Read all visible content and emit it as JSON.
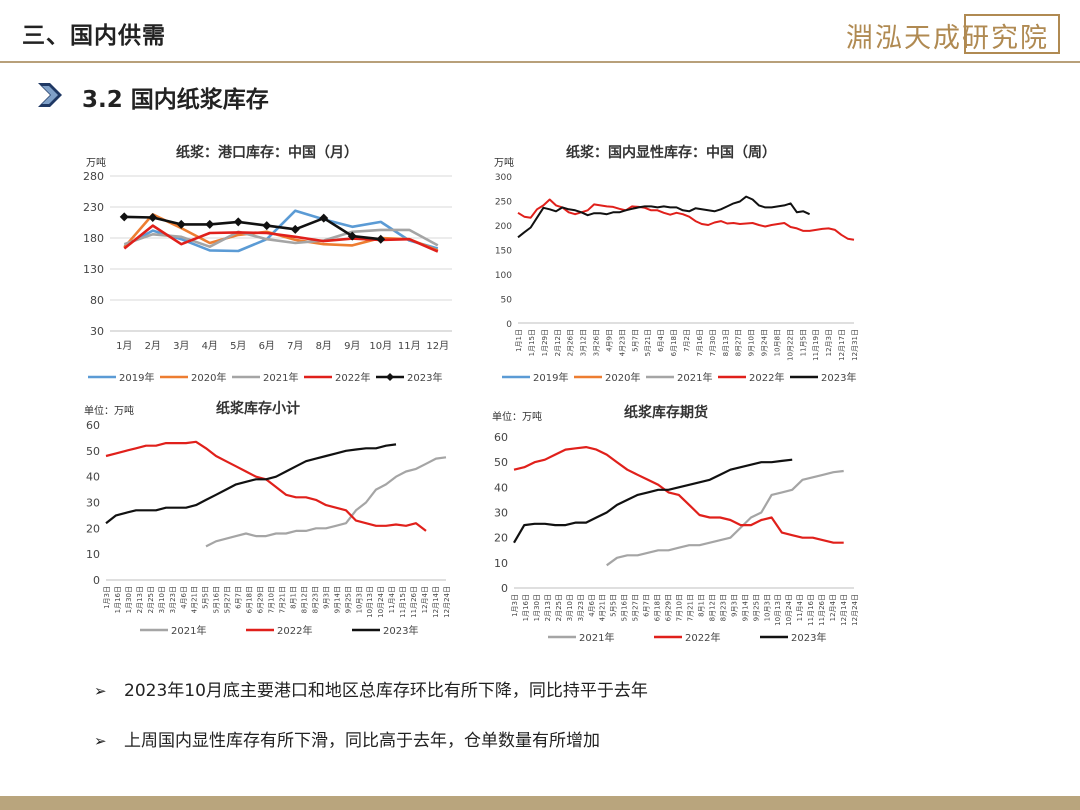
{
  "header": {
    "title": "三、国内供需",
    "logo_text": "淵泓天成研究院"
  },
  "section": {
    "title": "3.2 国内纸浆库存"
  },
  "colors": {
    "2019": "#5b9bd5",
    "2020": "#ed7d31",
    "2021": "#a5a5a5",
    "2022": "#e0201b",
    "2023": "#111111",
    "2021b": "#5b9bd5",
    "accent": "#b8a07a"
  },
  "charts": {
    "c1": {
      "title": "纸浆：港口库存：中国（月）",
      "unit": "万吨",
      "legend_marker_2023": "diamond"
    },
    "c2": {
      "title": "纸浆：国内显性库存：中国（周）",
      "unit": "万吨"
    },
    "c3": {
      "title": "纸浆库存小计",
      "unit": "单位：万吨"
    },
    "c4": {
      "title": "纸浆库存期货",
      "unit": "单位：万吨"
    }
  },
  "chart_data": [
    {
      "type": "line",
      "title": "纸浆：港口库存：中国（月）",
      "ylabel": "万吨",
      "ylim": [
        30,
        280
      ],
      "yticks": [
        30,
        80,
        130,
        180,
        230,
        280
      ],
      "categories": [
        "1月",
        "2月",
        "3月",
        "4月",
        "5月",
        "6月",
        "7月",
        "8月",
        "9月",
        "10月",
        "11月",
        "12月"
      ],
      "legend_position": "bottom",
      "series": [
        {
          "name": "2019年",
          "values": [
            167,
            192,
            178,
            160,
            159,
            178,
            224,
            210,
            198,
            206,
            176,
            163
          ]
        },
        {
          "name": "2020年",
          "values": [
            165,
            218,
            196,
            172,
            185,
            190,
            177,
            170,
            168,
            180,
            178,
            160
          ]
        },
        {
          "name": "2021年",
          "values": [
            170,
            186,
            182,
            166,
            190,
            178,
            172,
            176,
            190,
            193,
            193,
            168
          ]
        },
        {
          "name": "2022年",
          "values": [
            163,
            200,
            170,
            188,
            189,
            188,
            182,
            175,
            179,
            177,
            178,
            158
          ]
        },
        {
          "name": "2023年",
          "values": [
            214,
            213,
            202,
            202,
            206,
            200,
            194,
            212,
            183,
            178,
            null,
            null
          ]
        }
      ]
    },
    {
      "type": "line",
      "title": "纸浆：国内显性库存：中国（周）",
      "ylabel": "万吨",
      "ylim": [
        0,
        300
      ],
      "yticks": [
        0,
        50,
        100,
        150,
        200,
        250,
        300
      ],
      "x_ticks": [
        "1月1日",
        "1月15日",
        "1月29日",
        "2月12日",
        "2月26日",
        "3月12日",
        "3月26日",
        "4月9日",
        "4月23日",
        "5月7日",
        "5月21日",
        "6月4日",
        "6月18日",
        "7月2日",
        "7月16日",
        "7月30日",
        "8月13日",
        "8月27日",
        "9月10日",
        "9月24日",
        "10月8日",
        "10月22日",
        "11月5日",
        "11月19日",
        "12月3日",
        "12月17日",
        "12月31日"
      ],
      "legend_position": "bottom",
      "series": [
        {
          "name": "2019年",
          "values": []
        },
        {
          "name": "2020年",
          "values": []
        },
        {
          "name": "2021年",
          "values": []
        },
        {
          "name": "2022年",
          "values": [
            225,
            217,
            215,
            232,
            240,
            252,
            240,
            236,
            226,
            222,
            226,
            230,
            242,
            240,
            238,
            237,
            233,
            230,
            238,
            237,
            235,
            230,
            230,
            225,
            221,
            225,
            222,
            217,
            208,
            202,
            200,
            205,
            208,
            203,
            204,
            202,
            203,
            204,
            200,
            197,
            200,
            202,
            204,
            196,
            193,
            188,
            188,
            190,
            192,
            193,
            190,
            180,
            172,
            170
          ]
        },
        {
          "name": "2023年",
          "values": [
            175,
            185,
            195,
            215,
            235,
            232,
            228,
            236,
            232,
            230,
            226,
            220,
            224,
            224,
            222,
            226,
            226,
            230,
            233,
            236,
            238,
            238,
            236,
            238,
            236,
            236,
            230,
            228,
            234,
            232,
            230,
            228,
            232,
            238,
            244,
            248,
            258,
            252,
            240,
            236,
            236,
            238,
            240,
            244,
            226,
            228,
            222
          ]
        }
      ]
    },
    {
      "type": "line",
      "title": "纸浆库存小计",
      "ylabel": "单位：万吨",
      "ylim": [
        0,
        60
      ],
      "yticks": [
        0,
        10,
        20,
        30,
        40,
        50,
        60
      ],
      "x_ticks": [
        "1月3日",
        "1月16日",
        "1月30日",
        "2月13日",
        "2月25日",
        "3月10日",
        "3月23日",
        "4月6日",
        "4月21日",
        "5月5日",
        "5月16日",
        "5月27日",
        "6月7日",
        "6月18日",
        "6月29日",
        "7月10日",
        "7月21日",
        "8月1日",
        "8月12日",
        "8月23日",
        "9月3日",
        "9月14日",
        "9月25日",
        "10月3日",
        "10月13日",
        "10月24日",
        "11月4日",
        "11月15日",
        "11月26日",
        "12月4日",
        "12月14日",
        "12月24日"
      ],
      "legend_position": "bottom",
      "series": [
        {
          "name": "2021年",
          "values": [
            null,
            null,
            null,
            null,
            null,
            null,
            null,
            null,
            null,
            null,
            13,
            15,
            16,
            17,
            18,
            17,
            17,
            18,
            18,
            19,
            19,
            20,
            20,
            21,
            22,
            27,
            30,
            35,
            37,
            40,
            42,
            43,
            45,
            47,
            47.5
          ]
        },
        {
          "name": "2022年",
          "values": [
            48,
            49,
            50,
            51,
            52,
            52,
            53,
            53,
            53,
            53.5,
            51,
            48,
            46,
            44,
            42,
            40,
            39,
            36,
            33,
            32,
            32,
            31,
            29,
            28,
            27,
            23,
            22,
            21,
            21,
            21.5,
            21,
            22,
            19
          ]
        },
        {
          "name": "2023年",
          "values": [
            22,
            25,
            26,
            27,
            27,
            27,
            28,
            28,
            28,
            29,
            31,
            33,
            35,
            37,
            38,
            39,
            39,
            40,
            42,
            44,
            46,
            47,
            48,
            49,
            50,
            50.5,
            51,
            51,
            52,
            52.5
          ]
        }
      ]
    },
    {
      "type": "line",
      "title": "纸浆库存期货",
      "ylabel": "单位：万吨",
      "ylim": [
        0,
        60
      ],
      "yticks": [
        0,
        10,
        20,
        30,
        40,
        50,
        60
      ],
      "x_ticks": [
        "1月3日",
        "1月16日",
        "1月30日",
        "2月13日",
        "2月25日",
        "3月10日",
        "3月23日",
        "4月6日",
        "4月21日",
        "5月5日",
        "5月16日",
        "5月27日",
        "6月7日",
        "6月18日",
        "6月29日",
        "7月10日",
        "7月21日",
        "8月1日",
        "8月12日",
        "8月23日",
        "9月3日",
        "9月14日",
        "9月25日",
        "10月3日",
        "10月13日",
        "10月24日",
        "11月4日",
        "11月16日",
        "11月26日",
        "12月4日",
        "12月14日",
        "12月24日"
      ],
      "legend_position": "bottom",
      "series": [
        {
          "name": "2021年",
          "values": [
            null,
            null,
            null,
            null,
            null,
            null,
            null,
            null,
            null,
            9,
            12,
            13,
            13,
            14,
            15,
            15,
            16,
            17,
            17,
            18,
            19,
            20,
            24,
            28,
            30,
            37,
            38,
            39,
            43,
            44,
            45,
            46,
            46.5
          ]
        },
        {
          "name": "2022年",
          "values": [
            47,
            48,
            50,
            51,
            53,
            55,
            55.5,
            56,
            55,
            53,
            50,
            47,
            45,
            43,
            41,
            38,
            37,
            33,
            29,
            28,
            28,
            27,
            25,
            25,
            27,
            28,
            22,
            21,
            20,
            20,
            19,
            18,
            18
          ]
        },
        {
          "name": "2023年",
          "values": [
            18,
            25,
            25.5,
            25.5,
            25,
            25,
            26,
            26,
            28,
            30,
            33,
            35,
            37,
            38,
            39,
            39,
            40,
            41,
            42,
            43,
            45,
            47,
            48,
            49,
            50,
            50,
            50.5,
            51
          ]
        }
      ]
    }
  ],
  "bullets": [
    "2023年10月底主要港口和地区总库存环比有所下降，同比持平于去年",
    "上周国内显性库存有所下滑，同比高于去年，仓单数量有所增加"
  ],
  "bullet_marker": "➢"
}
